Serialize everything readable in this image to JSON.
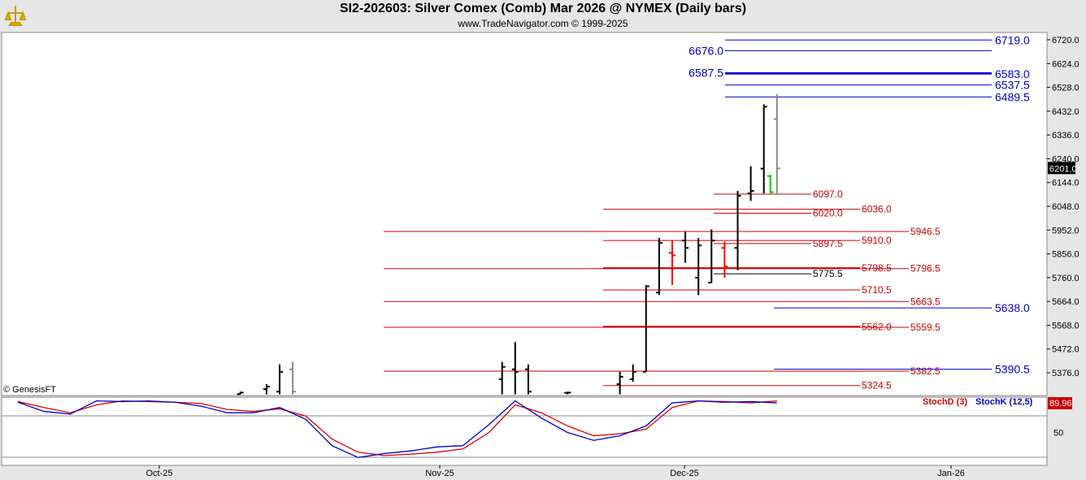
{
  "header": {
    "title": "SI2-202603:  Silver Comex (Comb) Mar 2026 @ NYMEX  (Daily bars)",
    "subtitle": "www.TradeNavigator.com © 1999-2025",
    "copyright": "© GenesisFT"
  },
  "colors": {
    "price_up": "#000000",
    "price_red": "#ff0000",
    "price_green": "#00cc00",
    "blue_levels": "#0000cc",
    "red_levels": "#cc0000",
    "stoch_d": "#dd0000",
    "stoch_k": "#0000cc"
  },
  "chart_data": [
    {
      "type": "bar",
      "subtype": "ohlc",
      "x_labels": [
        "Oct-25",
        "Nov-25",
        "Dec-25",
        "Jan-26"
      ],
      "y_ticks": [
        5376.0,
        5472.0,
        5568.0,
        5664.0,
        5760.0,
        5856.0,
        5952.0,
        6048.0,
        6144.0,
        6240.0,
        6336.0,
        6432.0,
        6528.0,
        6624.0,
        6720.0
      ],
      "ylim": [
        5289,
        6760
      ],
      "last_price": "6201.0",
      "bars": [
        {
          "i": 17,
          "o": 5290,
          "h": 5300,
          "l": 5289,
          "c": 5296
        },
        {
          "i": 19,
          "o": 5310,
          "h": 5330,
          "l": 5289,
          "c": 5320
        },
        {
          "i": 20,
          "o": 5300,
          "h": 5410,
          "l": 5289,
          "c": 5380
        },
        {
          "i": 21,
          "o": 5390,
          "h": 5420,
          "l": 5289,
          "c": 5300,
          "color": "gray"
        },
        {
          "i": 37,
          "o": 5350,
          "h": 5420,
          "l": 5289,
          "c": 5400
        },
        {
          "i": 38,
          "o": 5390,
          "h": 5500,
          "l": 5289,
          "c": 5380
        },
        {
          "i": 39,
          "o": 5390,
          "h": 5410,
          "l": 5289,
          "c": 5300
        },
        {
          "i": 42,
          "o": 5295,
          "h": 5300,
          "l": 5289,
          "c": 5296
        },
        {
          "i": 46,
          "o": 5330,
          "h": 5380,
          "l": 5289,
          "c": 5360
        },
        {
          "i": 47,
          "o": 5350,
          "h": 5410,
          "l": 5340,
          "c": 5380
        },
        {
          "i": 48,
          "o": 5380,
          "h": 5730,
          "l": 5380,
          "c": 5725
        },
        {
          "i": 49,
          "o": 5700,
          "h": 5920,
          "l": 5690,
          "c": 5900
        },
        {
          "i": 50,
          "o": 5860,
          "h": 5910,
          "l": 5730,
          "c": 5850,
          "color": "red"
        },
        {
          "i": 51,
          "o": 5910,
          "h": 5945,
          "l": 5820,
          "c": 5880
        },
        {
          "i": 52,
          "o": 5760,
          "h": 5920,
          "l": 5690,
          "c": 5890
        },
        {
          "i": 53,
          "o": 5740,
          "h": 5955,
          "l": 5740,
          "c": 5910
        },
        {
          "i": 54,
          "o": 5880,
          "h": 5905,
          "l": 5760,
          "c": 5805,
          "color": "red"
        },
        {
          "i": 55,
          "o": 5880,
          "h": 6110,
          "l": 5790,
          "c": 6090
        },
        {
          "i": 56,
          "o": 6100,
          "h": 6210,
          "l": 6070,
          "c": 6110
        },
        {
          "i": 57,
          "o": 6200,
          "h": 6460,
          "l": 6100,
          "c": 6450
        },
        {
          "i": 57.5,
          "o": 6170,
          "h": 6175,
          "l": 6100,
          "c": 6105,
          "color": "green"
        },
        {
          "i": 58,
          "o": 6400,
          "h": 6500,
          "l": 6100,
          "c": 6201,
          "color": "gray"
        }
      ],
      "red_levels": [
        {
          "value": 6097.0,
          "label": "6097.0"
        },
        {
          "value": 6036.0,
          "label": "6036.0"
        },
        {
          "value": 6020.0,
          "label": "6020.0"
        },
        {
          "value": 5946.5,
          "label": "5946.5"
        },
        {
          "value": 5910.0,
          "label": "5910.0"
        },
        {
          "value": 5897.5,
          "label": "5897.5"
        },
        {
          "value": 5798.5,
          "label": "5798.5"
        },
        {
          "value": 5796.5,
          "label": "5796.5"
        },
        {
          "value": 5775.5,
          "label": "5775.5"
        },
        {
          "value": 5710.5,
          "label": "5710.5"
        },
        {
          "value": 5663.5,
          "label": "5663.5"
        },
        {
          "value": 5562.0,
          "label": "5562.0"
        },
        {
          "value": 5559.5,
          "label": "5559.5"
        },
        {
          "value": 5382.5,
          "label": "5382.5"
        },
        {
          "value": 5324.5,
          "label": "5324.5"
        }
      ],
      "blue_levels": [
        {
          "value": 6719.0,
          "label": "6719.0"
        },
        {
          "value": 6676.0,
          "label": "6676.0"
        },
        {
          "value": 6587.5,
          "label": "6587.5"
        },
        {
          "value": 6583.0,
          "label": "6583.0"
        },
        {
          "value": 6537.5,
          "label": "6537.5"
        },
        {
          "value": 6489.5,
          "label": "6489.5"
        },
        {
          "value": 5638.0,
          "label": "5638.0"
        },
        {
          "value": 5390.5,
          "label": "5390.5"
        }
      ]
    },
    {
      "type": "line",
      "ylim": [
        0,
        100
      ],
      "y_ticks": [
        50
      ],
      "last_value": "89.96",
      "series": [
        {
          "name": "StochD (3)",
          "x": [
            0,
            2,
            4,
            6,
            8,
            10,
            12,
            14,
            16,
            18,
            20,
            22,
            24,
            26,
            28,
            30,
            32,
            34,
            36,
            38,
            40,
            42,
            44,
            46,
            48,
            50,
            52,
            54,
            56,
            58
          ],
          "values": [
            97,
            88,
            80,
            92,
            98,
            97,
            96,
            94,
            85,
            82,
            86,
            75,
            40,
            20,
            15,
            17,
            20,
            25,
            50,
            92,
            80,
            60,
            45,
            48,
            55,
            88,
            98,
            97,
            95,
            98
          ]
        },
        {
          "name": "StochK (12,5)",
          "x": [
            0,
            2,
            4,
            6,
            8,
            10,
            12,
            14,
            16,
            18,
            20,
            22,
            24,
            26,
            28,
            30,
            32,
            34,
            36,
            38,
            40,
            42,
            44,
            46,
            48,
            50,
            52,
            54,
            56,
            58
          ],
          "values": [
            96,
            82,
            78,
            98,
            97,
            98,
            96,
            90,
            80,
            80,
            88,
            70,
            30,
            12,
            18,
            22,
            28,
            30,
            62,
            98,
            72,
            50,
            38,
            45,
            60,
            95,
            98,
            96,
            97,
            95
          ]
        }
      ]
    }
  ]
}
